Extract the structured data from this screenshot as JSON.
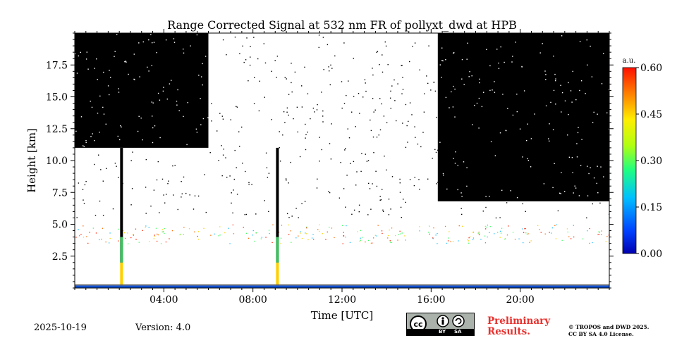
{
  "chart_data": {
    "type": "heatmap",
    "title": "Range Corrected Signal at 532 nm FR of pollyxt_dwd at HPB",
    "xlabel": "Time [UTC]",
    "ylabel": "Height [km]",
    "xlim_hours": [
      0,
      24
    ],
    "ylim_km": [
      0,
      20
    ],
    "x_ticks": [
      {
        "value": 4,
        "label": "04:00"
      },
      {
        "value": 8,
        "label": "08:00"
      },
      {
        "value": 12,
        "label": "12:00"
      },
      {
        "value": 16,
        "label": "16:00"
      },
      {
        "value": 20,
        "label": "20:00"
      }
    ],
    "y_ticks": [
      {
        "value": 2.5,
        "label": "2.5"
      },
      {
        "value": 5.0,
        "label": "5.0"
      },
      {
        "value": 7.5,
        "label": "7.5"
      },
      {
        "value": 10.0,
        "label": "10.0"
      },
      {
        "value": 12.5,
        "label": "12.5"
      },
      {
        "value": 15.0,
        "label": "15.0"
      },
      {
        "value": 17.5,
        "label": "17.5"
      }
    ],
    "colorbar": {
      "unit_label": "a.u.",
      "range": [
        0,
        0.6
      ],
      "ticks": [
        {
          "value": 0.0,
          "label": "0.00"
        },
        {
          "value": 0.15,
          "label": "0.15"
        },
        {
          "value": 0.3,
          "label": "0.30"
        },
        {
          "value": 0.45,
          "label": "0.45"
        },
        {
          "value": 0.6,
          "label": "0.60"
        }
      ],
      "colormap": "jet"
    },
    "features": {
      "no_data_regions_black_hours": [
        [
          0,
          6
        ],
        [
          16.3,
          24
        ]
      ],
      "clear_top_km_first_segment": 11,
      "clear_top_km_last_segment": 6.8,
      "spikes_hours": [
        2.1,
        9.1
      ],
      "surface_layer_km": 0.2,
      "aerosol_layer_km": [
        3.5,
        5.0
      ]
    }
  },
  "footer": {
    "date": "2025-10-19",
    "version": "Version: 4.0",
    "preliminary_line1": "Preliminary",
    "preliminary_line2": "Results.",
    "copyright_line1": "© TROPOS and DWD 2025.",
    "copyright_line2": "CC BY SA 4.0 License.",
    "license_badge": {
      "cc": "cc",
      "by": "BY",
      "sa": "SA"
    }
  }
}
